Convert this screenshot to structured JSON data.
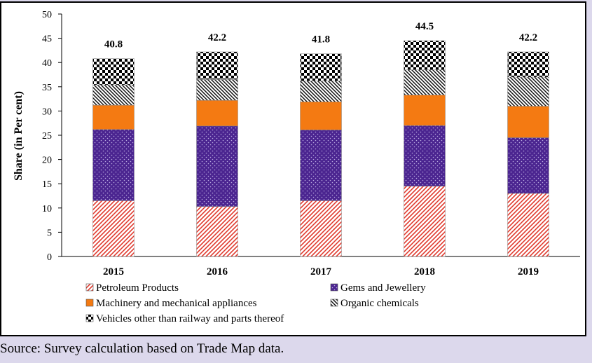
{
  "source_note": "Source: Survey calculation based on Trade Map data.",
  "chart_data": {
    "type": "bar",
    "stacked": true,
    "title": "",
    "xlabel": "",
    "ylabel": "Share (in Per cent)",
    "ylim": [
      0,
      50
    ],
    "yticks": [
      0,
      5,
      10,
      15,
      20,
      25,
      30,
      35,
      40,
      45,
      50
    ],
    "categories": [
      "2015",
      "2016",
      "2017",
      "2018",
      "2019"
    ],
    "totals": [
      "40.8",
      "42.2",
      "41.8",
      "44.5",
      "42.2"
    ],
    "legend_position": "bottom",
    "grid": false,
    "series": [
      {
        "name": "Petroleum Products",
        "pattern": "diagonal-red",
        "color": "#e03a2e",
        "values": [
          11.5,
          10.3,
          11.5,
          14.5,
          13.0
        ]
      },
      {
        "name": "Gems and Jewellery",
        "pattern": "dotted-purple",
        "color": "#4b2590",
        "values": [
          14.7,
          16.6,
          14.6,
          12.5,
          11.5
        ]
      },
      {
        "name": "Machinery and mechanical appliances",
        "pattern": "solid-orange",
        "color": "#f47a12",
        "values": [
          5.0,
          5.3,
          5.8,
          6.3,
          6.5
        ]
      },
      {
        "name": "Organic chemicals",
        "pattern": "hatch-black",
        "color": "#222222",
        "values": [
          4.2,
          4.3,
          4.3,
          5.2,
          6.0
        ]
      },
      {
        "name": "Vehicles other than railway and parts thereof",
        "pattern": "checker-black",
        "color": "#000000",
        "values": [
          5.4,
          5.7,
          5.6,
          6.0,
          5.2
        ]
      }
    ]
  }
}
